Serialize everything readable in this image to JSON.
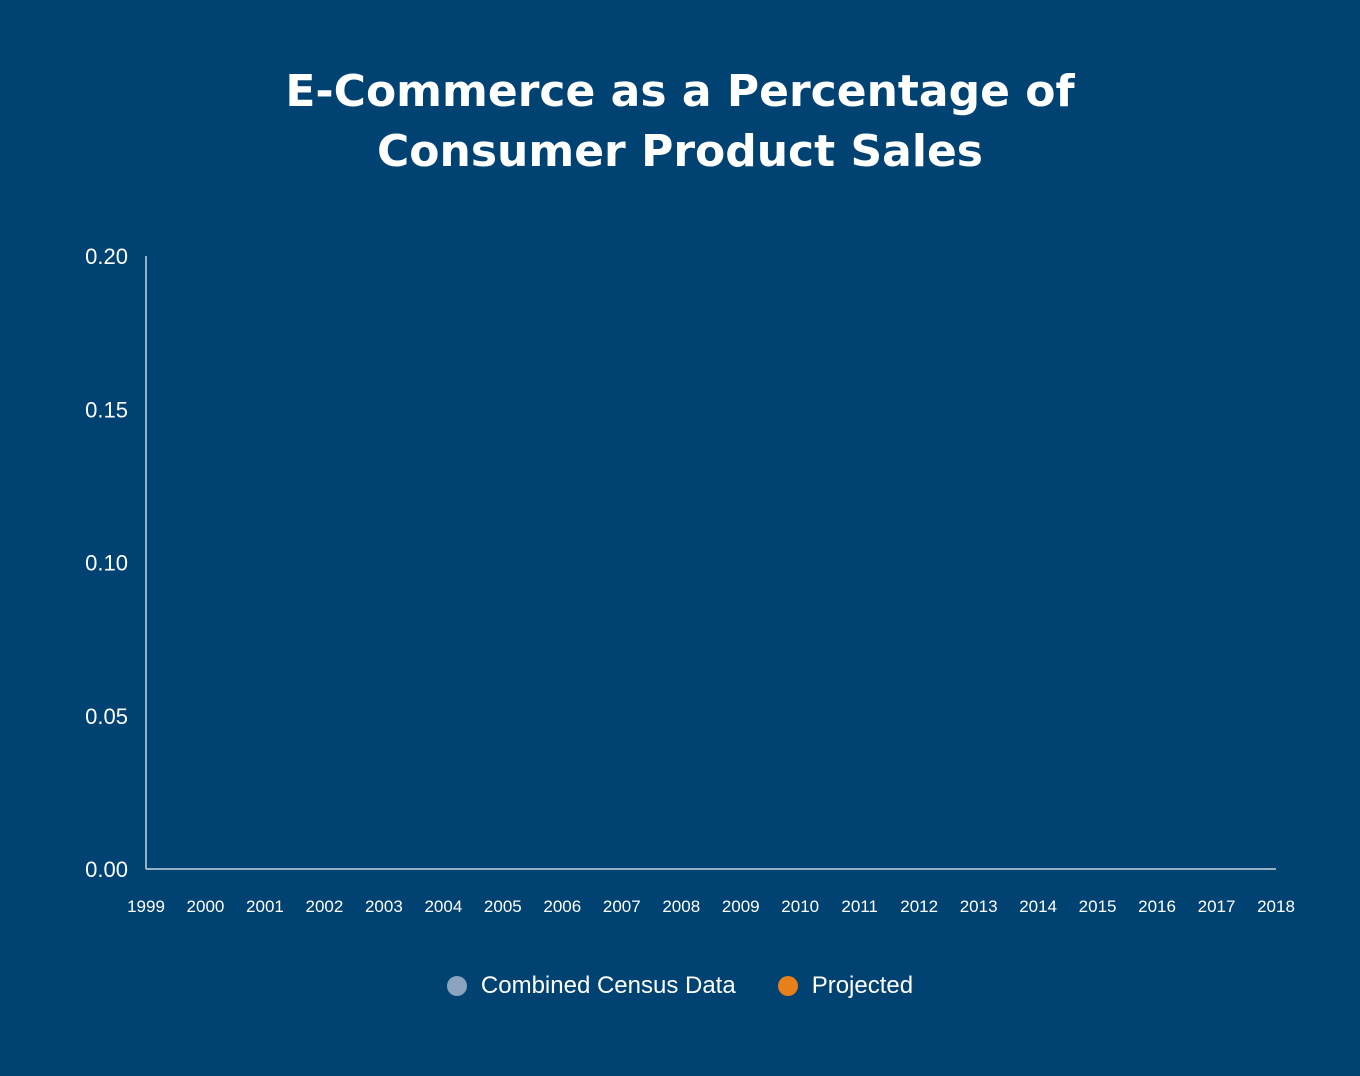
{
  "chart_data": {
    "type": "scatter",
    "title_lines": [
      "E-Commerce as a Percentage of",
      "Consumer Product Sales"
    ],
    "xlabel": "",
    "ylabel": "",
    "x_ticks": [
      "1999",
      "2000",
      "2001",
      "2002",
      "2003",
      "2004",
      "2005",
      "2006",
      "2007",
      "2008",
      "2009",
      "2010",
      "2011",
      "2012",
      "2013",
      "2014",
      "2015",
      "2016",
      "2017",
      "2018"
    ],
    "y_ticks": [
      "0.00",
      "0.05",
      "0.10",
      "0.15",
      "0.20"
    ],
    "xlim": [
      1999,
      2018
    ],
    "ylim": [
      0,
      0.2
    ],
    "grid": false,
    "legend_position": "bottom",
    "series": [
      {
        "name": "Combined Census Data",
        "color": "#8aa4be",
        "points": []
      },
      {
        "name": "Projected",
        "color": "#e8801a",
        "points": []
      }
    ]
  },
  "colors": {
    "background": "#004272",
    "axis": "#c8d4e0",
    "text": "#ffffff"
  }
}
